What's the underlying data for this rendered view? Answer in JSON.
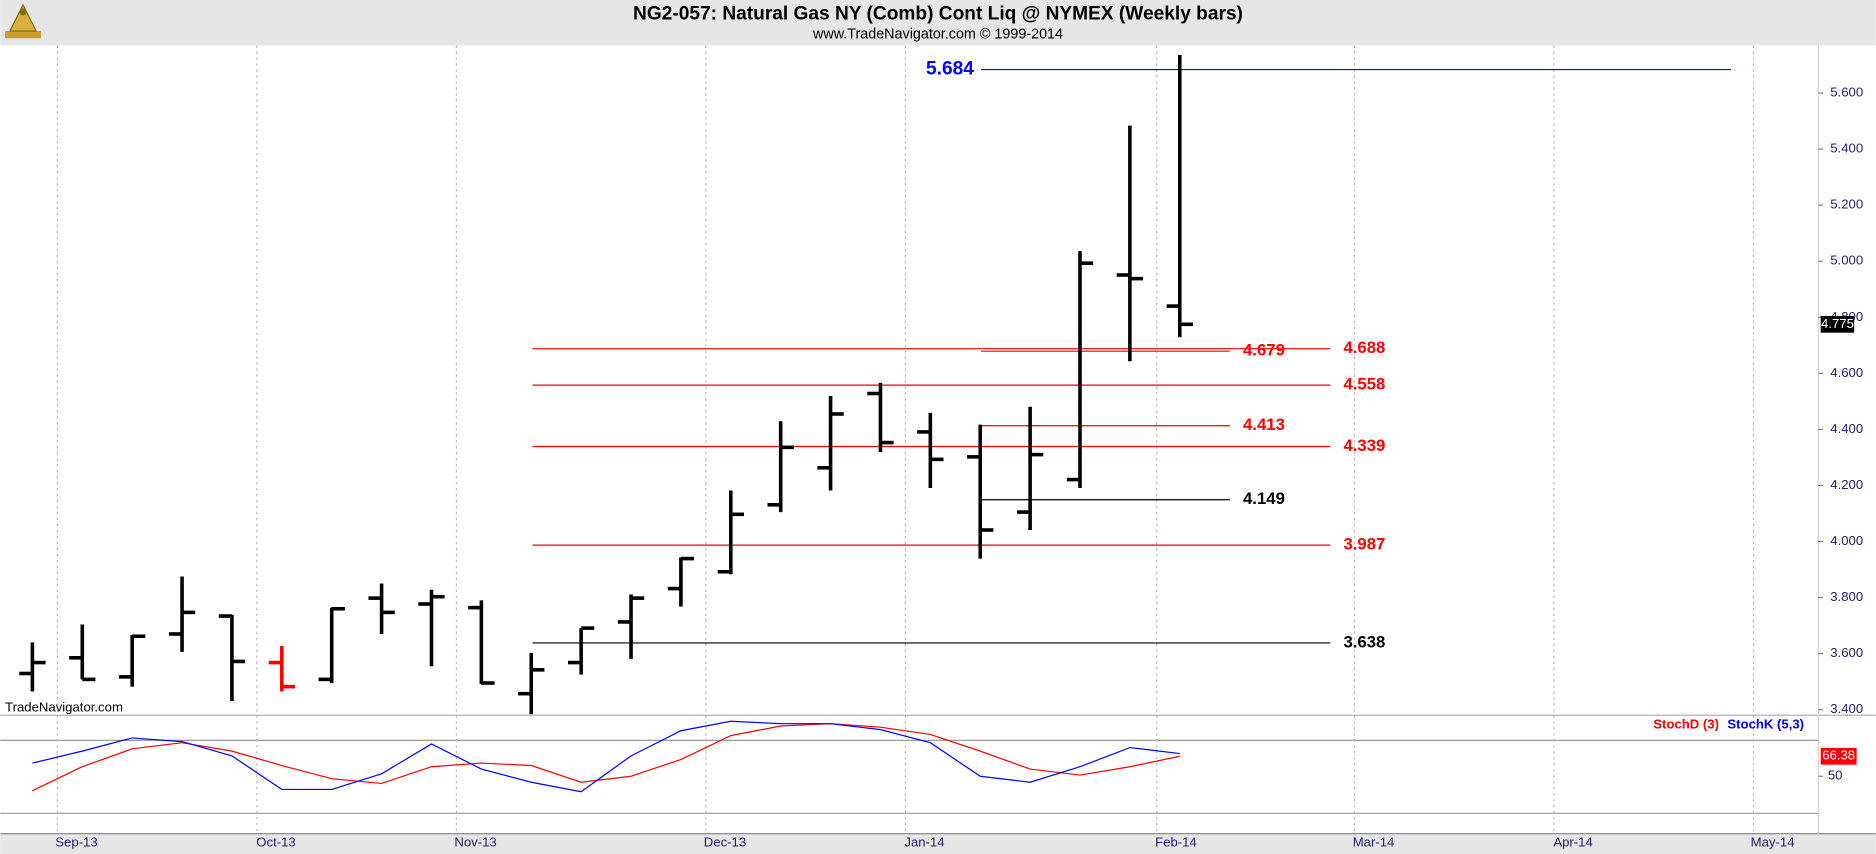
{
  "chart_data": [
    {
      "type": "ohlc",
      "title": "NG2-057:  Natural Gas NY (Comb) Cont Liq @ NYMEX  (Weekly bars)",
      "subtitle": "www.TradeNavigator.com © 1999-2014",
      "watermark": "TradeNavigator.com",
      "categories": [
        null,
        null,
        null,
        null,
        null,
        null,
        null,
        null,
        null,
        null,
        null,
        null,
        null,
        null,
        null,
        null,
        null,
        null,
        null,
        null,
        null,
        null,
        null,
        null
      ],
      "open": [
        3.529,
        3.585,
        3.517,
        3.67,
        3.734,
        3.568,
        3.508,
        3.798,
        3.777,
        3.764,
        3.457,
        3.568,
        3.713,
        3.832,
        3.892,
        4.131,
        4.263,
        4.528,
        4.391,
        4.302,
        4.105,
        4.221,
        4.951,
        4.84
      ],
      "high": [
        3.64,
        3.704,
        3.666,
        3.875,
        3.738,
        3.627,
        3.764,
        3.85,
        3.828,
        3.79,
        3.602,
        3.691,
        3.811,
        3.943,
        4.182,
        4.429,
        4.519,
        4.566,
        4.459,
        4.417,
        4.481,
        5.036,
        5.484,
        5.736
      ],
      "low": [
        3.465,
        3.508,
        3.482,
        3.606,
        3.431,
        3.465,
        3.495,
        3.67,
        3.555,
        3.491,
        3.384,
        3.525,
        3.581,
        3.768,
        3.883,
        4.105,
        4.182,
        4.319,
        4.191,
        3.939,
        4.041,
        4.191,
        4.643,
        4.729
      ],
      "close": [
        3.568,
        3.508,
        3.662,
        3.747,
        3.572,
        3.482,
        3.76,
        3.747,
        3.803,
        3.495,
        3.542,
        3.691,
        3.798,
        3.939,
        4.097,
        4.336,
        4.455,
        4.353,
        4.293,
        4.041,
        4.31,
        4.993,
        4.938,
        4.775
      ],
      "colors": [
        "#000000",
        "#000000",
        "#000000",
        "#000000",
        "#000000",
        "#ff0000",
        "#000000",
        "#000000",
        "#000000",
        "#000000",
        "#000000",
        "#000000",
        "#000000",
        "#000000",
        "#000000",
        "#000000",
        "#000000",
        "#000000",
        "#000000",
        "#000000",
        "#000000",
        "#000000",
        "#000000",
        "#000000"
      ],
      "levels": [
        {
          "value": 5.684,
          "color": "#0000ff"
        },
        {
          "value": 4.688,
          "color": "#ff0000"
        },
        {
          "value": 4.679,
          "color": "#ff0000"
        },
        {
          "value": 4.558,
          "color": "#ff0000"
        },
        {
          "value": 4.413,
          "color": "#ff0000"
        },
        {
          "value": 4.339,
          "color": "#ff0000"
        },
        {
          "value": 4.149,
          "color": "#000000"
        },
        {
          "value": 3.987,
          "color": "#ff0000"
        },
        {
          "value": 3.638,
          "color": "#000000"
        }
      ],
      "xlim": [
        -0.5,
        35.8
      ],
      "ylim": [
        3.38,
        5.77
      ],
      "yticks": [
        {
          "value": 3.4,
          "label": "3.400"
        },
        {
          "value": 3.6,
          "label": "3.600"
        },
        {
          "value": 3.8,
          "label": "3.800"
        },
        {
          "value": 4.0,
          "label": "4.000"
        },
        {
          "value": 4.2,
          "label": "4.200"
        },
        {
          "value": 4.4,
          "label": "4.400"
        },
        {
          "value": 4.6,
          "label": "4.600"
        },
        {
          "value": 4.8,
          "label": "4.800"
        },
        {
          "value": 5.0,
          "label": "5.000"
        },
        {
          "value": 5.2,
          "label": "5.200"
        },
        {
          "value": 5.4,
          "label": "5.400"
        },
        {
          "value": 5.6,
          "label": "5.600"
        }
      ]
    },
    {
      "type": "line",
      "series": [
        {
          "name": "StochD (3)",
          "color": "#ff0000",
          "values": [
            38.2,
            57.8,
            72.5,
            77.5,
            70.6,
            58.8,
            48.0,
            44.1,
            57.8,
            60.8,
            58.8,
            45.1,
            50.0,
            63.7,
            83.3,
            91.2,
            93.1,
            90.2,
            84.3,
            70.6,
            55.9,
            51.0,
            57.8,
            66.38
          ]
        },
        {
          "name": "StochK (5,3)",
          "color": "#0000ff",
          "values": [
            60.8,
            70.6,
            81.4,
            78.4,
            66.7,
            39.2,
            39.2,
            52.0,
            76.5,
            55.9,
            45.1,
            37.3,
            66.7,
            87.3,
            95.1,
            93.1,
            93.1,
            88.2,
            77.5,
            50.0,
            45.1,
            57.8,
            73.5,
            68.6
          ]
        }
      ],
      "xlim": [
        -0.5,
        35.8
      ],
      "xticks": [
        {
          "value": 0.5,
          "label": "Sep-13"
        },
        {
          "value": 4.5,
          "label": "Oct-13"
        },
        {
          "value": 8.5,
          "label": "Nov-13"
        },
        {
          "value": 13.5,
          "label": "Dec-13"
        },
        {
          "value": 17.5,
          "label": "Jan-14"
        },
        {
          "value": 22.54,
          "label": "Feb-14"
        },
        {
          "value": 26.5,
          "label": "Mar-14"
        },
        {
          "value": 30.5,
          "label": "Apr-14"
        },
        {
          "value": 34.5,
          "label": "May-14"
        }
      ],
      "ylim": [
        0,
        100
      ],
      "yticks": [
        50
      ]
    }
  ]
}
